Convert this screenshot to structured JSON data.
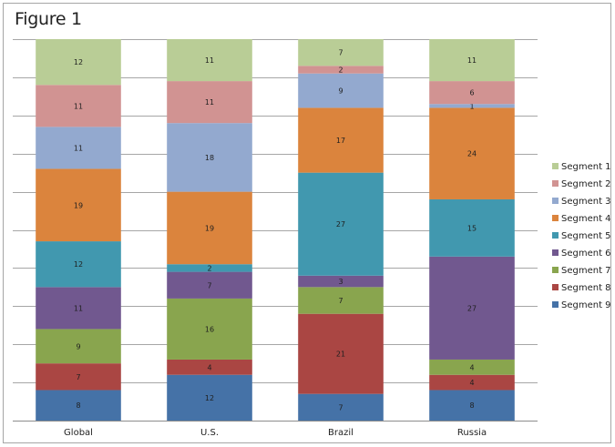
{
  "chart_data": {
    "type": "bar",
    "stacked": true,
    "title": "Figure 1",
    "xlabel": "",
    "ylabel": "",
    "ylim": [
      0,
      100
    ],
    "grid": true,
    "legend_position": "right",
    "categories": [
      "Global",
      "U.S.",
      "Brazil",
      "Russia"
    ],
    "series": [
      {
        "name": "Segment 9",
        "color": "#4572a7",
        "values": [
          8,
          12,
          7,
          8
        ]
      },
      {
        "name": "Segment 8",
        "color": "#aa4643",
        "values": [
          7,
          4,
          21,
          4
        ]
      },
      {
        "name": "Segment 7",
        "color": "#89a54e",
        "values": [
          9,
          16,
          7,
          4
        ]
      },
      {
        "name": "Segment 6",
        "color": "#71588f",
        "values": [
          11,
          7,
          3,
          27
        ]
      },
      {
        "name": "Segment 5",
        "color": "#4198af",
        "values": [
          12,
          2,
          27,
          15
        ]
      },
      {
        "name": "Segment 4",
        "color": "#db843d",
        "values": [
          19,
          19,
          17,
          24
        ]
      },
      {
        "name": "Segment 3",
        "color": "#93a9cf",
        "values": [
          11,
          18,
          9,
          1
        ]
      },
      {
        "name": "Segment 2",
        "color": "#d19392",
        "values": [
          11,
          11,
          2,
          6
        ]
      },
      {
        "name": "Segment 1",
        "color": "#b9cd96",
        "values": [
          12,
          11,
          7,
          11
        ]
      }
    ],
    "legend_order": [
      "Segment 1",
      "Segment 2",
      "Segment 3",
      "Segment 4",
      "Segment 5",
      "Segment 6",
      "Segment 7",
      "Segment 8",
      "Segment 9"
    ]
  }
}
